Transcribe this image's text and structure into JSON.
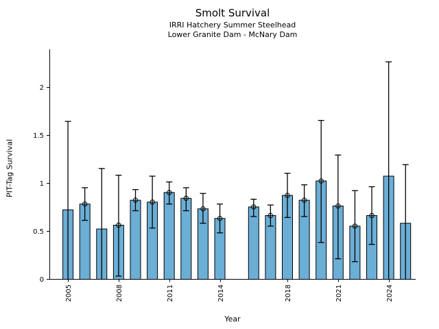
{
  "chart_data": {
    "type": "bar",
    "title": "Smolt Survival",
    "subtitle": [
      "IRRI Hatchery Summer Steelhead",
      "Lower Granite Dam - McNary Dam"
    ],
    "xlabel": "Year",
    "ylabel": "PIT-Tag Survival",
    "categories": [
      2005,
      2006,
      2007,
      2008,
      2009,
      2010,
      2011,
      2012,
      2013,
      2014,
      2016,
      2017,
      2018,
      2019,
      2020,
      2021,
      2022,
      2023,
      2024,
      2025
    ],
    "values": [
      0.72,
      0.78,
      0.52,
      0.56,
      0.82,
      0.8,
      0.9,
      0.84,
      0.73,
      0.63,
      0.75,
      0.66,
      0.87,
      0.82,
      1.02,
      0.76,
      0.55,
      0.66,
      1.07,
      0.58
    ],
    "error_low": [
      0.0,
      0.61,
      0.0,
      0.03,
      0.71,
      0.53,
      0.78,
      0.71,
      0.58,
      0.48,
      0.65,
      0.55,
      0.64,
      0.65,
      0.38,
      0.21,
      0.18,
      0.36,
      0.0,
      0.0
    ],
    "error_high": [
      1.64,
      0.95,
      1.15,
      1.08,
      0.93,
      1.07,
      1.01,
      0.95,
      0.89,
      0.78,
      0.83,
      0.77,
      1.1,
      0.98,
      1.65,
      1.29,
      0.92,
      0.96,
      2.26,
      1.19
    ],
    "lower_cap": [
      false,
      true,
      false,
      true,
      true,
      true,
      true,
      true,
      true,
      true,
      true,
      true,
      true,
      true,
      true,
      true,
      true,
      true,
      false,
      false
    ],
    "point_marker": [
      false,
      true,
      false,
      true,
      true,
      true,
      true,
      true,
      true,
      true,
      true,
      true,
      true,
      true,
      true,
      true,
      true,
      true,
      false,
      false
    ],
    "missing_years": [
      2015
    ],
    "x_ticks": [
      "2005",
      "2008",
      "2011",
      "2014",
      "2018",
      "2021",
      "2024"
    ],
    "y_ticks": [
      "0",
      "0.5",
      "1",
      "1.5",
      "2"
    ],
    "x_tick_rotation": 90,
    "xlim": [
      2003.9,
      2025.6
    ],
    "ylim": [
      0,
      2.39
    ],
    "grid": false,
    "legend": false,
    "bar_fill": "#6BAED6",
    "bar_edge": "#000000",
    "error_color": "#000000",
    "background": "#FFFFFF",
    "text_color": "#000000"
  }
}
